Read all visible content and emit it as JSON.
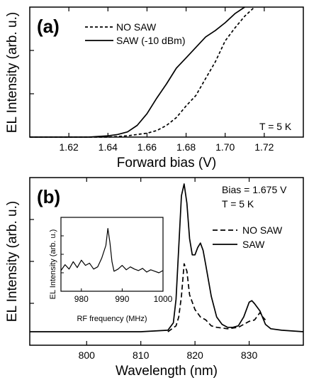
{
  "chart_data": [
    {
      "type": "line",
      "panel_label": "(a)",
      "xlabel": "Forward bias (V)",
      "ylabel": "EL Intensity (arb. u.)",
      "xlim": [
        1.6,
        1.74
      ],
      "ylim": [
        0,
        1
      ],
      "x_ticks": [
        1.62,
        1.64,
        1.66,
        1.68,
        1.7,
        1.72
      ],
      "x_tick_labels": [
        "1.62",
        "1.64",
        "1.66",
        "1.68",
        "1.70",
        "1.72"
      ],
      "annotation": "T = 5 K",
      "legend_position": "top-left",
      "series": [
        {
          "name": "NO SAW",
          "style": "dashed",
          "x": [
            1.6,
            1.64,
            1.65,
            1.655,
            1.66,
            1.665,
            1.67,
            1.675,
            1.68,
            1.685,
            1.69,
            1.695,
            1.7,
            1.705,
            1.71,
            1.715
          ],
          "y": [
            0.0,
            0.0,
            0.01,
            0.02,
            0.03,
            0.05,
            0.09,
            0.15,
            0.24,
            0.32,
            0.45,
            0.58,
            0.74,
            0.84,
            0.93,
            1.0
          ]
        },
        {
          "name": "SAW (-10 dBm)",
          "style": "solid",
          "x": [
            1.6,
            1.63,
            1.64,
            1.645,
            1.65,
            1.655,
            1.66,
            1.665,
            1.67,
            1.675,
            1.68,
            1.685,
            1.69,
            1.695,
            1.7,
            1.705,
            1.71
          ],
          "y": [
            0.0,
            0.0,
            0.01,
            0.02,
            0.04,
            0.09,
            0.18,
            0.3,
            0.41,
            0.53,
            0.61,
            0.69,
            0.77,
            0.82,
            0.88,
            0.95,
            1.0
          ]
        }
      ]
    },
    {
      "type": "line",
      "panel_label": "(b)",
      "xlabel": "Wavelength (nm)",
      "ylabel": "EL Intensity (arb. u.)",
      "xlim": [
        789.5,
        840
      ],
      "ylim": [
        0,
        1
      ],
      "x_ticks": [
        800,
        810,
        820,
        830
      ],
      "x_tick_labels": [
        "800",
        "810",
        "820",
        "830"
      ],
      "annotations": [
        "Bias = 1.675 V",
        "T = 5 K"
      ],
      "legend_position": "right",
      "series": [
        {
          "name": "NO SAW",
          "style": "dashed",
          "x": [
            815.0,
            816.5,
            817.0,
            817.5,
            818.0,
            818.5,
            819.0,
            820.0,
            821.0,
            822.0,
            823.0,
            824.0,
            826.0,
            828.0,
            829.0,
            830.0,
            831.0,
            832.0,
            832.5,
            833.0
          ],
          "y": [
            0.0,
            0.04,
            0.1,
            0.24,
            0.46,
            0.41,
            0.25,
            0.15,
            0.1,
            0.08,
            0.04,
            0.03,
            0.02,
            0.03,
            0.05,
            0.07,
            0.08,
            0.13,
            0.1,
            0.08
          ]
        },
        {
          "name": "SAW",
          "style": "solid",
          "x": [
            789.5,
            810.0,
            815.0,
            816.0,
            816.5,
            817.0,
            817.5,
            818.0,
            818.5,
            819.0,
            819.5,
            820.0,
            820.5,
            821.0,
            821.5,
            822.0,
            823.0,
            824.0,
            825.0,
            826.0,
            827.0,
            828.0,
            829.0,
            830.0,
            830.5,
            831.0,
            832.0,
            833.0,
            834.0,
            836.0,
            840.0
          ],
          "y": [
            0.0,
            0.0,
            0.01,
            0.06,
            0.22,
            0.57,
            0.92,
            1.0,
            0.87,
            0.63,
            0.52,
            0.52,
            0.57,
            0.6,
            0.55,
            0.45,
            0.24,
            0.1,
            0.05,
            0.03,
            0.03,
            0.04,
            0.1,
            0.2,
            0.21,
            0.19,
            0.14,
            0.05,
            0.02,
            0.01,
            0.0
          ]
        }
      ],
      "inset": {
        "xlabel": "RF frequency (MHz)",
        "ylabel": "EL Intensity (arb. u.)",
        "xlim": [
          975,
          1000
        ],
        "x_ticks": [
          980,
          990,
          1000
        ],
        "x_tick_labels": [
          "980",
          "990",
          "1000"
        ],
        "series": [
          {
            "style": "solid",
            "x": [
              975,
              976,
              977,
              978,
              979,
              980,
              981,
              982,
              983,
              984,
              985,
              986,
              986.5,
              987,
              987.5,
              988,
              989,
              990,
              991,
              992,
              993,
              994,
              995,
              996,
              997,
              998,
              999,
              1000
            ],
            "y": [
              0.28,
              0.36,
              0.3,
              0.4,
              0.32,
              0.42,
              0.35,
              0.38,
              0.3,
              0.33,
              0.45,
              0.62,
              0.85,
              0.66,
              0.4,
              0.27,
              0.3,
              0.35,
              0.29,
              0.33,
              0.3,
              0.28,
              0.31,
              0.26,
              0.29,
              0.27,
              0.25,
              0.28
            ]
          }
        ]
      }
    }
  ]
}
